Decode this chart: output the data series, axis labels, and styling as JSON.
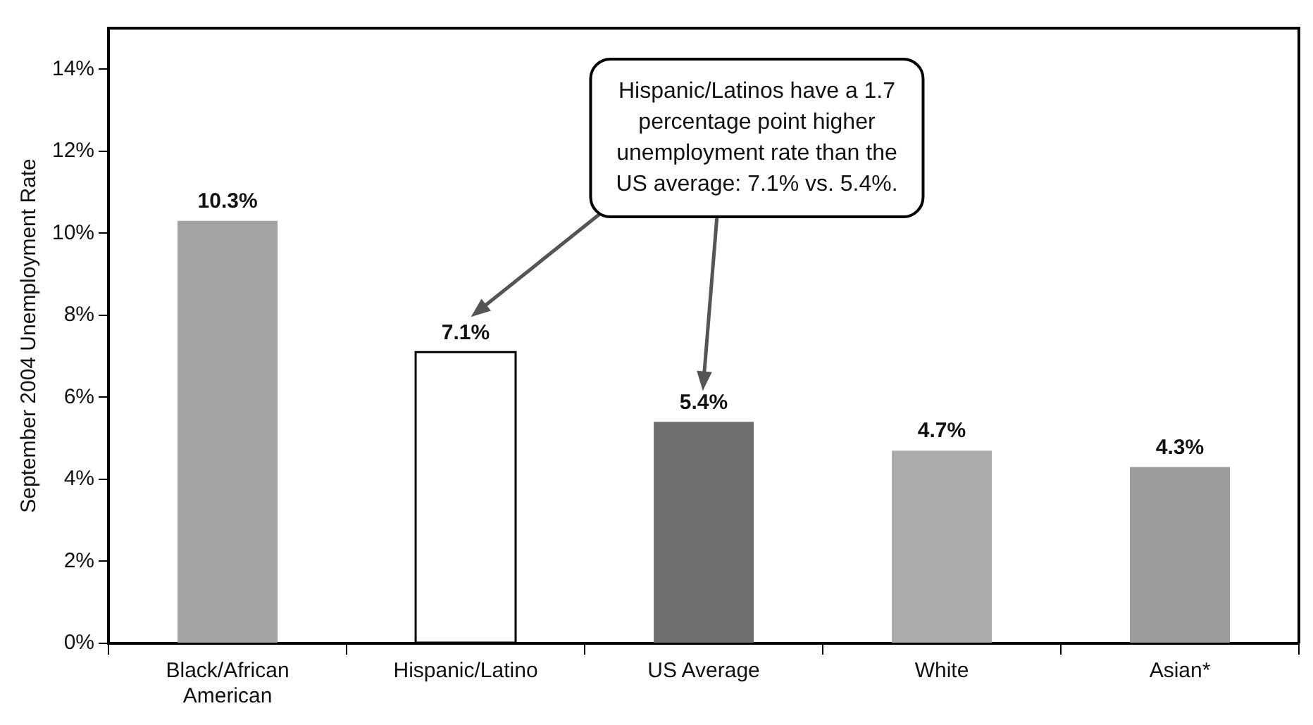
{
  "chart_data": {
    "type": "bar",
    "ylabel": "September 2004 Unemployment Rate",
    "categories": [
      "Black/African American",
      "Hispanic/Latino",
      "US Average",
      "White",
      "Asian*"
    ],
    "values": [
      10.3,
      7.1,
      5.4,
      4.7,
      4.3
    ],
    "colors": [
      "#a3a3a3",
      "#ffffff",
      "#6f6f6f",
      "#ababab",
      "#9c9c9c"
    ],
    "value_labels": [
      "10.3%",
      "7.1%",
      "5.4%",
      "4.7%",
      "4.3%"
    ],
    "ylim": [
      0,
      15
    ],
    "yticks": [
      {
        "value": 0,
        "label": "0%"
      },
      {
        "value": 2,
        "label": "2%"
      },
      {
        "value": 4,
        "label": "4%"
      },
      {
        "value": 6,
        "label": "6%"
      },
      {
        "value": 8,
        "label": "8%"
      },
      {
        "value": 10,
        "label": "10%"
      },
      {
        "value": 12,
        "label": "12%"
      },
      {
        "value": 14,
        "label": "14%"
      }
    ],
    "annotations": [
      "Hispanic/Latinos have a 1.7 percentage point higher unemployment rate than the US average: 7.1% vs. 5.4%."
    ],
    "grid": false,
    "legend": false
  }
}
